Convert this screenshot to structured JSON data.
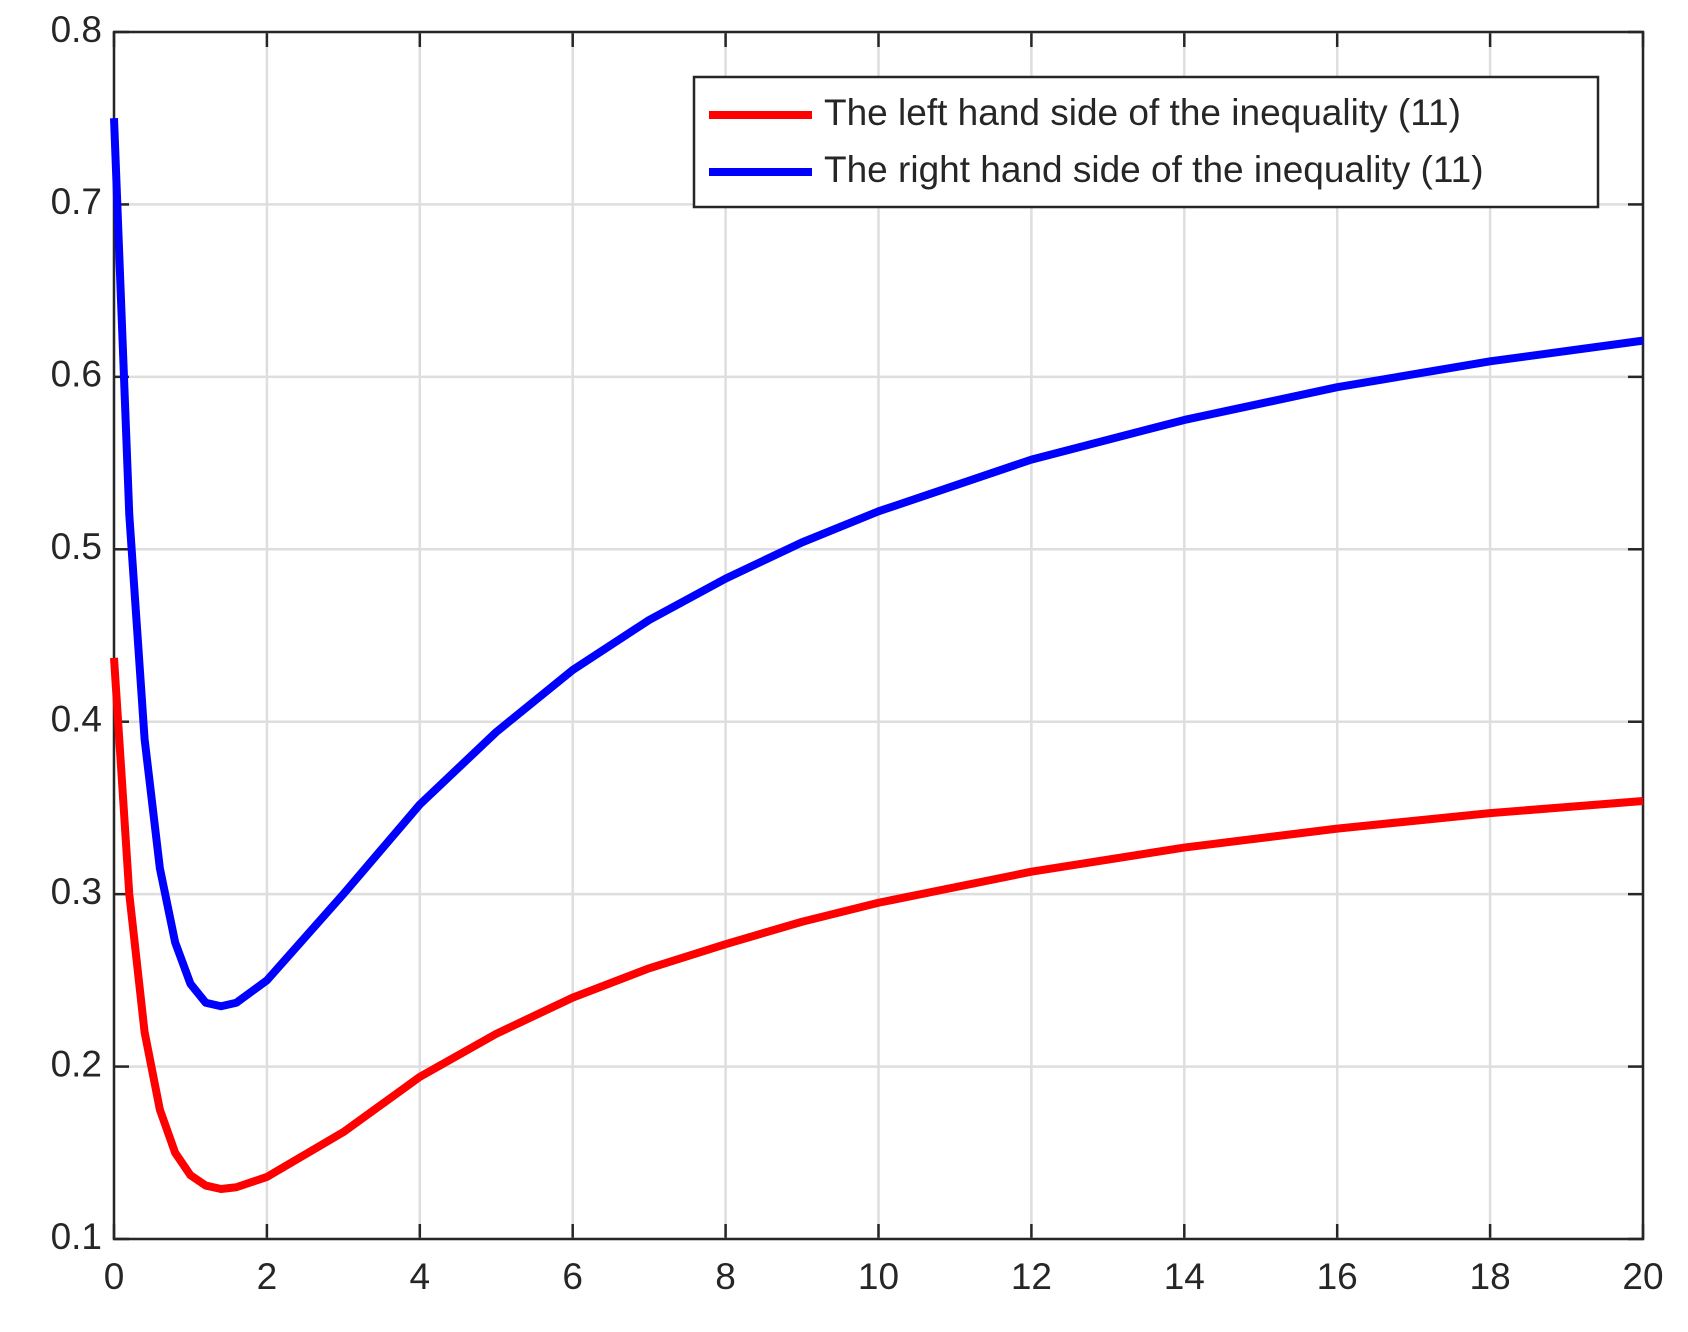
{
  "chart_data": {
    "type": "line",
    "x": [
      0,
      0.2,
      0.4,
      0.6,
      0.8,
      1.0,
      1.2,
      1.4,
      1.6,
      2,
      3,
      4,
      5,
      6,
      7,
      8,
      9,
      10,
      12,
      14,
      16,
      18,
      20
    ],
    "series": [
      {
        "name": "The left hand side of the inequality (11)",
        "color": "#ff0000",
        "values": [
          0.437,
          0.3,
          0.22,
          0.175,
          0.15,
          0.137,
          0.131,
          0.129,
          0.13,
          0.136,
          0.162,
          0.194,
          0.219,
          0.24,
          0.257,
          0.271,
          0.284,
          0.295,
          0.313,
          0.327,
          0.338,
          0.347,
          0.354
        ]
      },
      {
        "name": "The right hand side of the inequality (11)",
        "color": "#0000ff",
        "values": [
          0.75,
          0.52,
          0.39,
          0.315,
          0.272,
          0.248,
          0.237,
          0.235,
          0.237,
          0.25,
          0.3,
          0.352,
          0.394,
          0.43,
          0.459,
          0.483,
          0.504,
          0.522,
          0.552,
          0.575,
          0.594,
          0.609,
          0.621
        ]
      }
    ],
    "xlim": [
      0,
      20
    ],
    "xticks": [
      0,
      2,
      4,
      6,
      8,
      10,
      12,
      14,
      16,
      18,
      20
    ],
    "ylim": [
      0.1,
      0.8
    ],
    "yticks": [
      0.1,
      0.2,
      0.3,
      0.4,
      0.5,
      0.6,
      0.7,
      0.8
    ],
    "grid": true,
    "legend": "northeast"
  }
}
